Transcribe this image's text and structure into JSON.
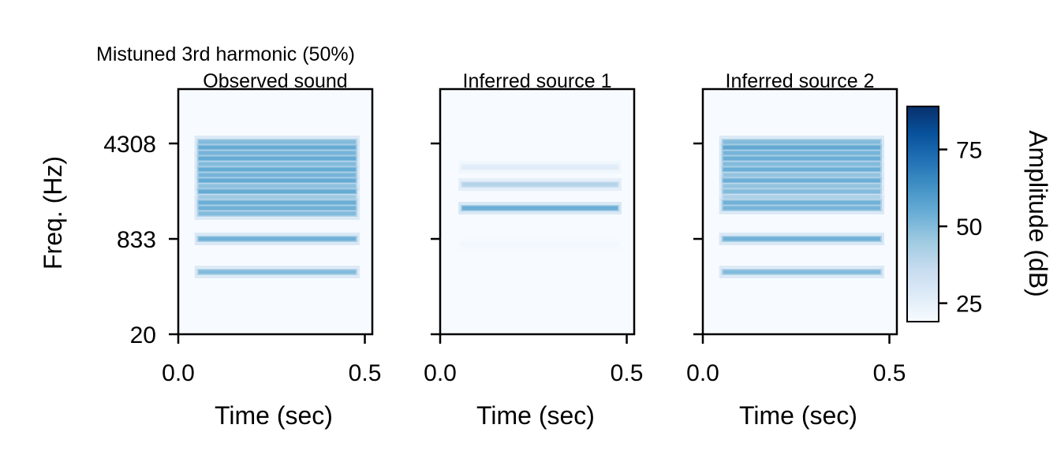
{
  "chart_data": {
    "type": "heatmap",
    "title": "Mistuned 3rd harmonic (50%)",
    "y_scale": "ERB",
    "xlabel": "Time (sec)",
    "ylabel": "Freq. (Hz)",
    "xlim": [
      0.0,
      0.52
    ],
    "ylim": [
      20,
      10150
    ],
    "x_ticks": [
      "0.0",
      "0.5"
    ],
    "x_tick_values": [
      0.0,
      0.5
    ],
    "y_ticks": [
      "20",
      "833",
      "4308"
    ],
    "y_tick_values": [
      20,
      833,
      4308
    ],
    "colormap": "Blues",
    "colorbar": {
      "label": "Amplitude (dB)",
      "range": [
        19,
        89
      ],
      "ticks": [
        "25",
        "50",
        "75"
      ],
      "tick_values": [
        25,
        50,
        75
      ]
    },
    "panels": [
      {
        "title": "Observed sound",
        "onset": 0.05,
        "offset": 0.48,
        "bands": [
          {
            "freq_hz": 4416,
            "db": 50
          },
          {
            "freq_hz": 4041,
            "db": 55
          },
          {
            "freq_hz": 3697,
            "db": 52
          },
          {
            "freq_hz": 3382,
            "db": 55
          },
          {
            "freq_hz": 3091,
            "db": 50
          },
          {
            "freq_hz": 2824,
            "db": 55
          },
          {
            "freq_hz": 2579,
            "db": 52
          },
          {
            "freq_hz": 2352,
            "db": 55
          },
          {
            "freq_hz": 2144,
            "db": 48
          },
          {
            "freq_hz": 1954,
            "db": 55
          },
          {
            "freq_hz": 1778,
            "db": 45
          },
          {
            "freq_hz": 1616,
            "db": 54
          },
          {
            "freq_hz": 1468,
            "db": 53
          },
          {
            "freq_hz": 1332,
            "db": 50
          },
          {
            "freq_hz": 833,
            "db": 53
          },
          {
            "freq_hz": 413,
            "db": 50
          }
        ]
      },
      {
        "title": "Inferred source 1",
        "onset": 0.055,
        "offset": 0.48,
        "bands": [
          {
            "freq_hz": 2938,
            "db": 27
          },
          {
            "freq_hz": 2201,
            "db": 40
          },
          {
            "freq_hz": 1467,
            "db": 54
          },
          {
            "freq_hz": 748,
            "db": 21
          }
        ]
      },
      {
        "title": "Inferred source 2",
        "onset": 0.05,
        "offset": 0.48,
        "bands": [
          {
            "freq_hz": 4416,
            "db": 50
          },
          {
            "freq_hz": 4041,
            "db": 56
          },
          {
            "freq_hz": 3697,
            "db": 52
          },
          {
            "freq_hz": 3382,
            "db": 54
          },
          {
            "freq_hz": 3091,
            "db": 50
          },
          {
            "freq_hz": 2824,
            "db": 54
          },
          {
            "freq_hz": 2579,
            "db": 47
          },
          {
            "freq_hz": 2352,
            "db": 54
          },
          {
            "freq_hz": 2144,
            "db": 47
          },
          {
            "freq_hz": 1954,
            "db": 50
          },
          {
            "freq_hz": 1778,
            "db": 42
          },
          {
            "freq_hz": 1616,
            "db": 53
          },
          {
            "freq_hz": 1468,
            "db": 52
          },
          {
            "freq_hz": 833,
            "db": 53
          },
          {
            "freq_hz": 413,
            "db": 50
          }
        ]
      }
    ]
  }
}
